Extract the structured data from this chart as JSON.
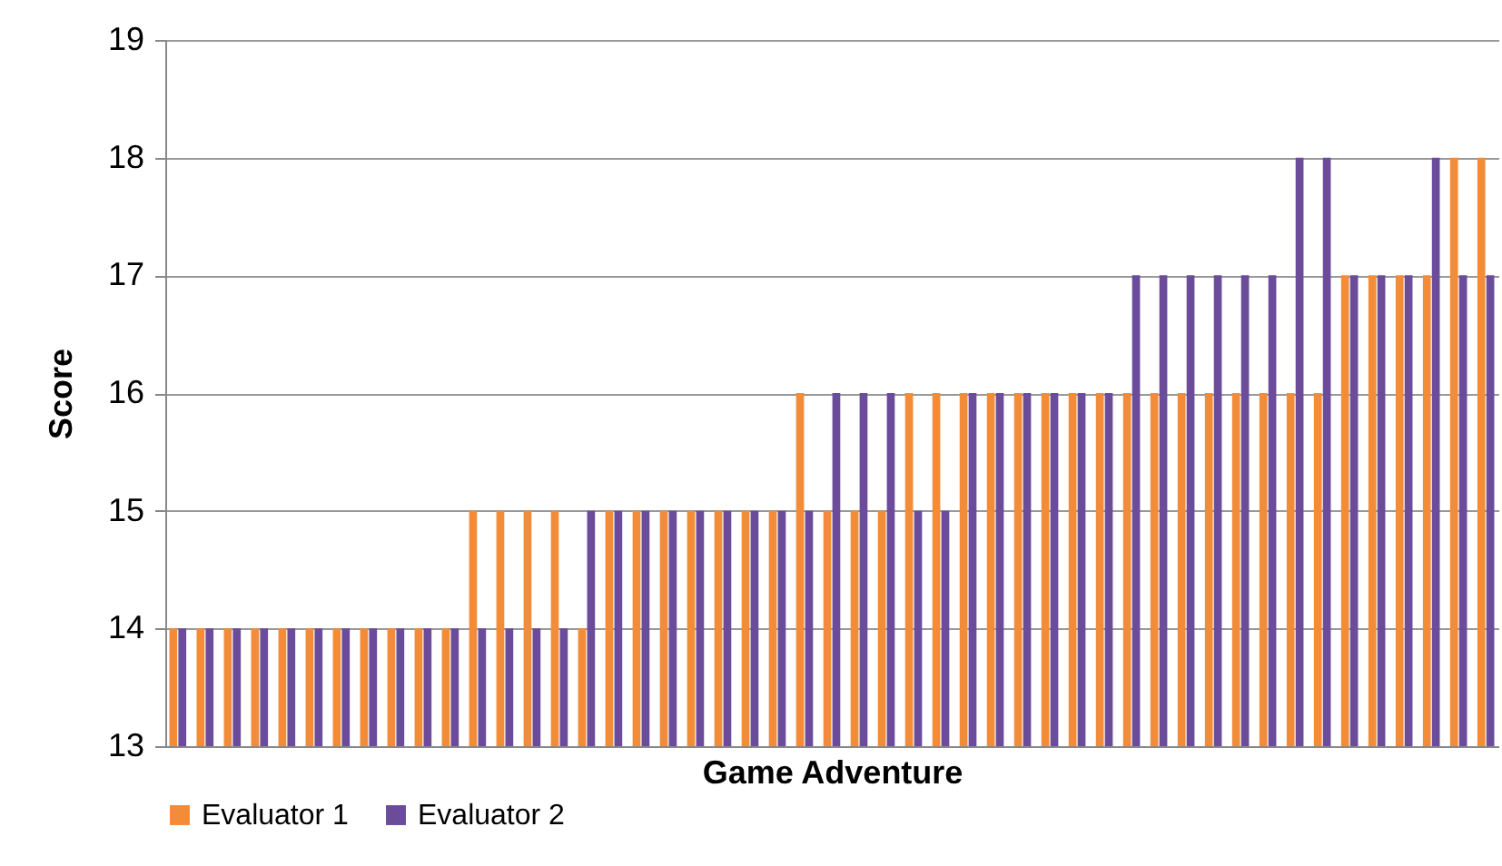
{
  "chart_data": {
    "type": "bar",
    "xlabel": "Game Adventure",
    "ylabel": "Score",
    "categories": [
      null,
      null,
      null,
      null,
      null,
      null,
      null,
      null,
      null,
      null,
      null,
      null,
      null,
      null,
      null,
      null,
      null,
      null,
      null,
      null,
      null,
      null,
      null,
      null,
      null,
      null,
      null,
      null,
      null,
      null,
      null,
      null,
      null,
      null,
      null,
      null,
      null,
      null,
      null,
      null,
      null,
      null,
      null,
      null,
      null,
      null,
      null,
      null,
      null
    ],
    "series": [
      {
        "name": "Evaluator 1",
        "color": "#f28c38",
        "values": [
          14,
          14,
          14,
          14,
          14,
          14,
          14,
          14,
          14,
          14,
          14,
          15,
          15,
          15,
          15,
          14,
          15,
          15,
          15,
          15,
          15,
          15,
          15,
          16,
          15,
          15,
          15,
          16,
          16,
          16,
          16,
          16,
          16,
          16,
          16,
          16,
          16,
          16,
          16,
          16,
          16,
          16,
          16,
          17,
          17,
          17,
          17,
          18,
          18
        ]
      },
      {
        "name": "Evaluator 2",
        "color": "#6b4c9a",
        "values": [
          14,
          14,
          14,
          14,
          14,
          14,
          14,
          14,
          14,
          14,
          14,
          14,
          14,
          14,
          14,
          15,
          15,
          15,
          15,
          15,
          15,
          15,
          15,
          15,
          16,
          16,
          16,
          15,
          15,
          16,
          16,
          16,
          16,
          16,
          16,
          17,
          17,
          17,
          17,
          17,
          17,
          18,
          18,
          17,
          17,
          17,
          18,
          17,
          17
        ]
      }
    ],
    "ylim": [
      13,
      19
    ],
    "yticks": [
      13,
      14,
      15,
      16,
      17,
      18,
      19
    ],
    "grid": "y",
    "legend": "bottom",
    "tick_labels": "y"
  }
}
